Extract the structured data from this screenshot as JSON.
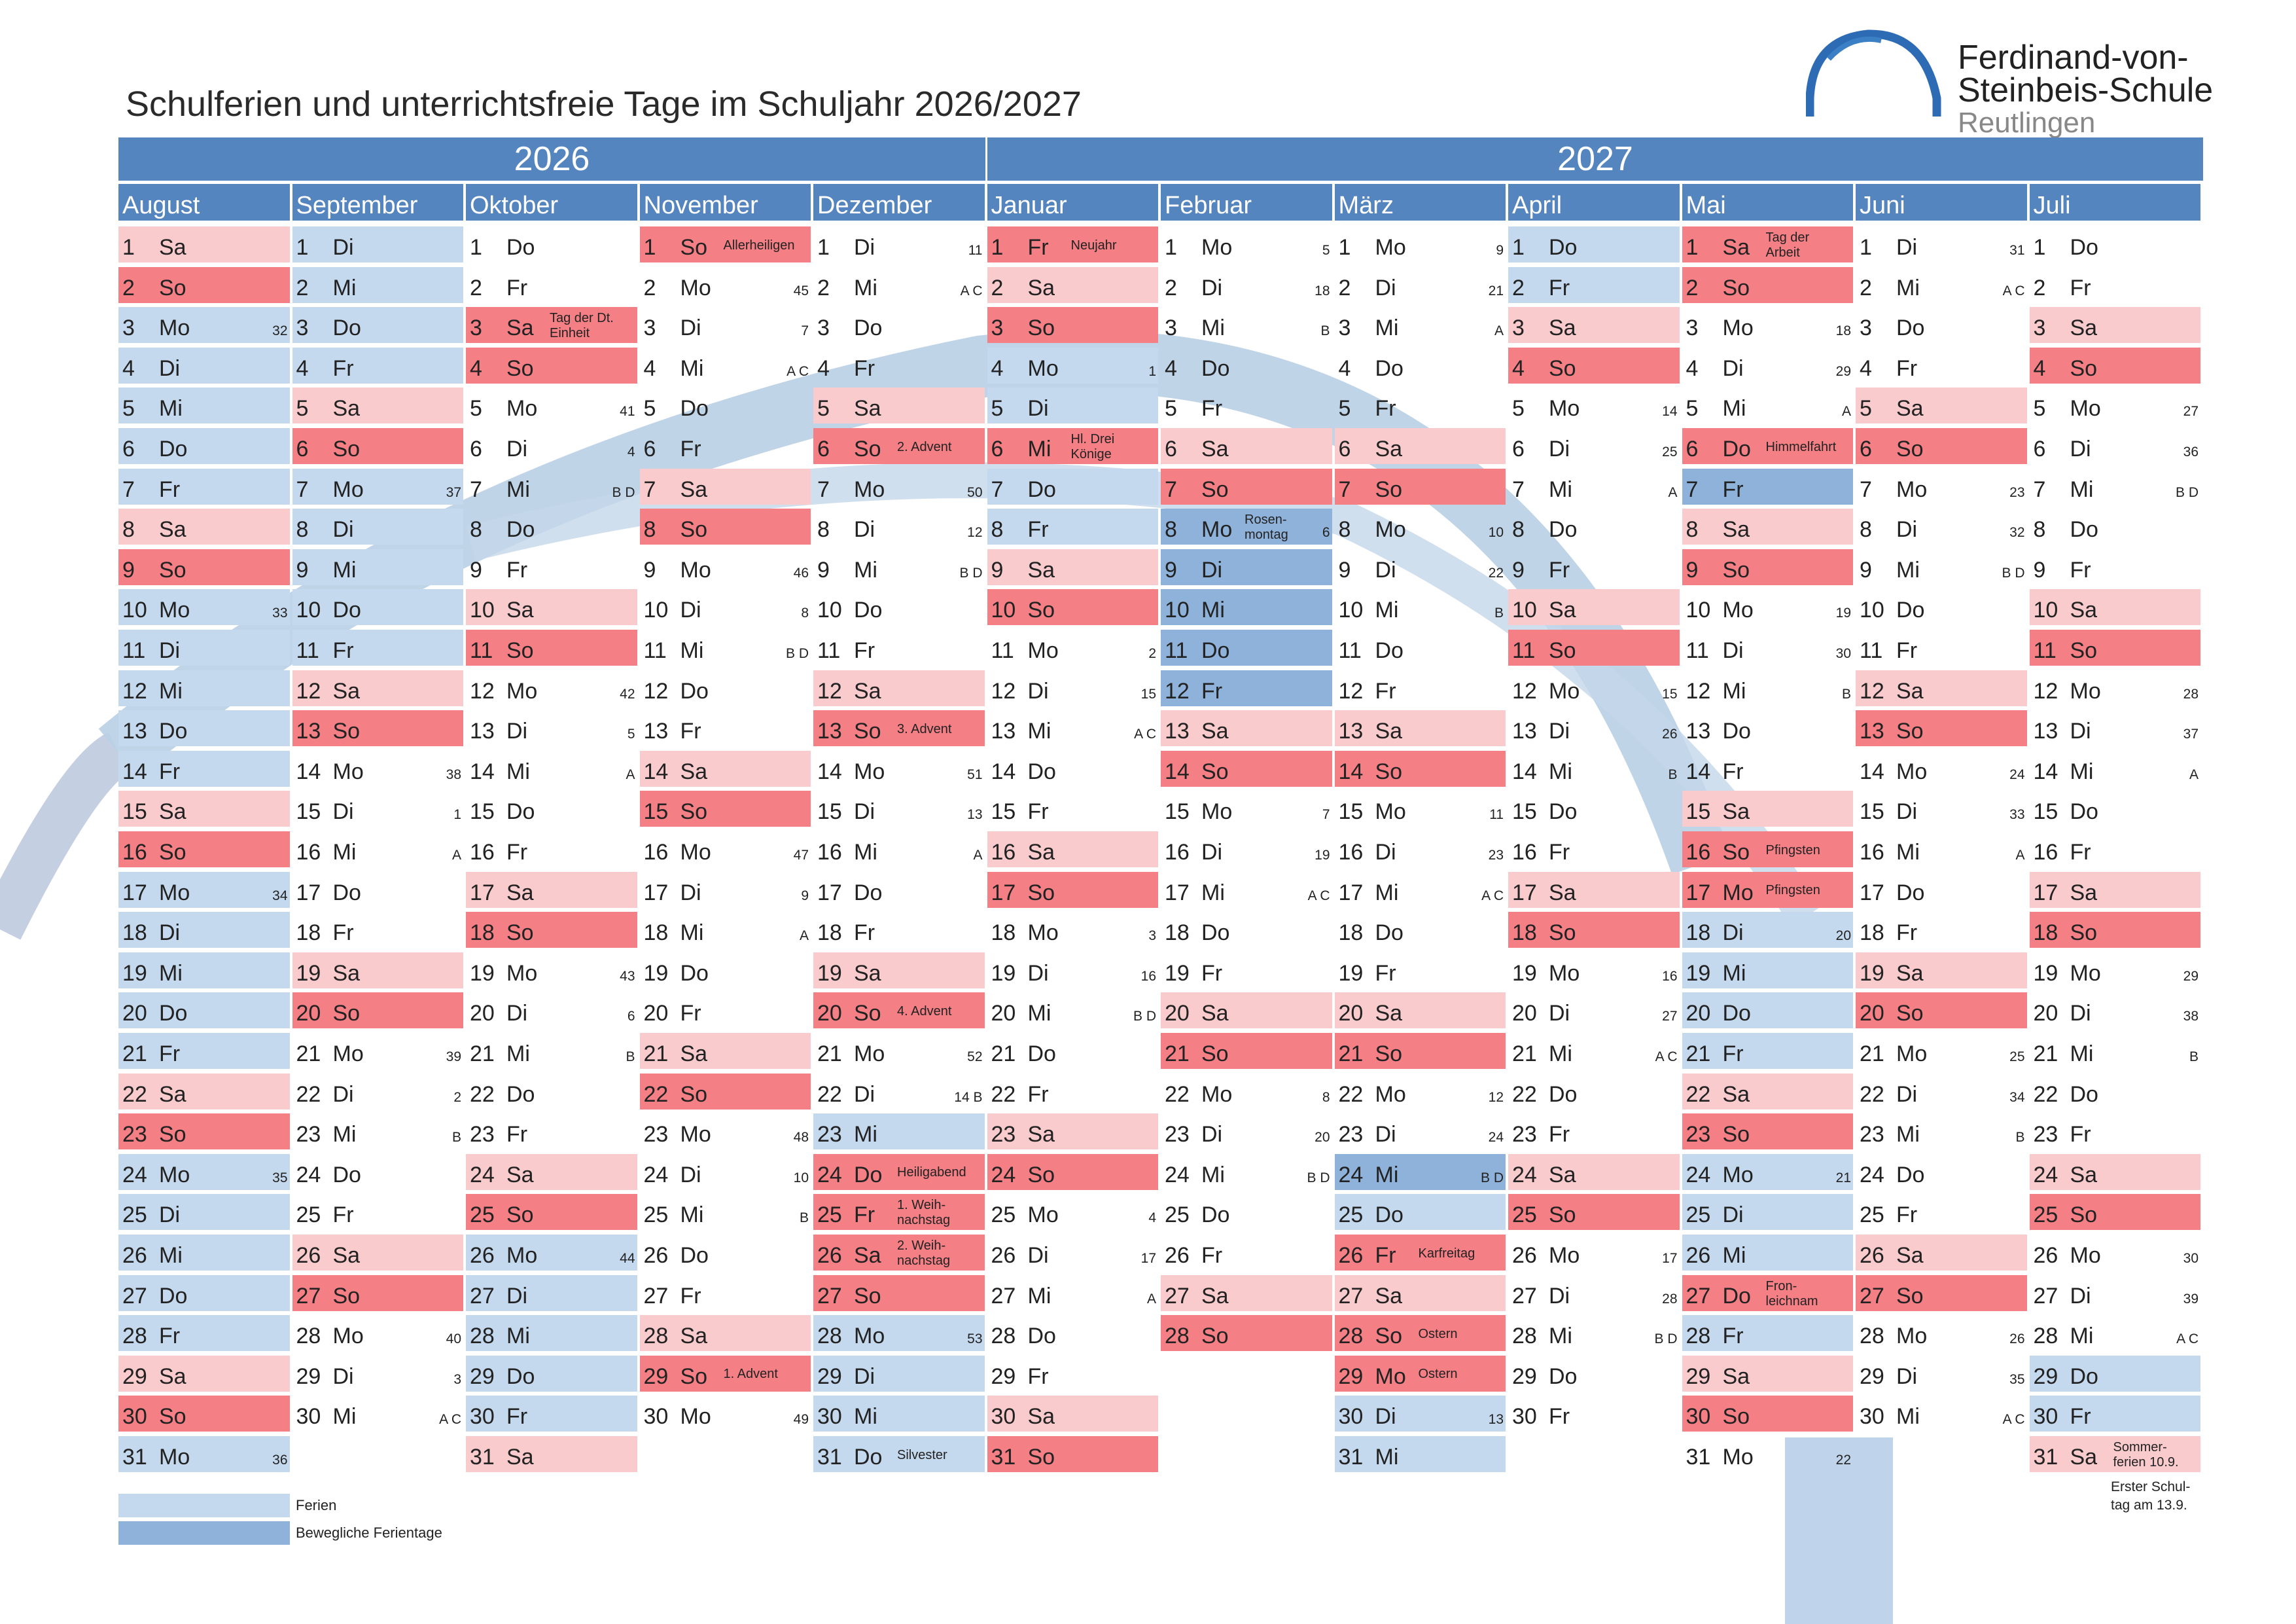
{
  "title": "Schulferien und unterrichtsfreie Tage im Schuljahr 2026/2027",
  "logo": {
    "line1": "Ferdinand-von-",
    "line2": "Steinbeis-Schule",
    "line3": "Reutlingen"
  },
  "years": [
    "2026",
    "2027"
  ],
  "weekday_abbr": [
    "Mo",
    "Di",
    "Mi",
    "Do",
    "Fr",
    "Sa",
    "So"
  ],
  "day_numbers": [
    1,
    2,
    3,
    4,
    5,
    6,
    7,
    8,
    9,
    10,
    11,
    12,
    13,
    14,
    15,
    16,
    17,
    18,
    19,
    20,
    21,
    22,
    23,
    24,
    25,
    26,
    27,
    28,
    29,
    30,
    31
  ],
  "colors": {
    "header": "#5585be",
    "saturday": "#f9cbcd",
    "sunday_holiday": "#f47f85",
    "ferien": "#c5d9ee",
    "bewegliche": "#8fb2da"
  },
  "months": [
    {
      "name": "August",
      "year": "2026",
      "days": 31,
      "start": 5,
      "status": {
        "3": "F",
        "4": "F",
        "5": "F",
        "6": "F",
        "7": "F",
        "10": "F",
        "11": "F",
        "12": "F",
        "13": "F",
        "14": "F",
        "17": "F",
        "18": "F",
        "19": "F",
        "20": "F",
        "21": "F",
        "24": "F",
        "25": "F",
        "26": "F",
        "27": "F",
        "28": "F",
        "31": "F"
      },
      "marks": {
        "3": "32",
        "10": "33",
        "17": "34",
        "24": "35",
        "31": "36"
      },
      "notes": {}
    },
    {
      "name": "September",
      "year": "2026",
      "days": 30,
      "start": 1,
      "status": {
        "1": "F",
        "2": "F",
        "3": "F",
        "4": "F",
        "7": "F",
        "8": "F",
        "9": "F",
        "10": "F",
        "11": "F"
      },
      "marks": {
        "7": "37",
        "14": "38",
        "15": "1",
        "16": "A",
        "21": "39",
        "22": "2",
        "23": "B",
        "28": "40",
        "29": "3",
        "30": "A C"
      },
      "notes": {}
    },
    {
      "name": "Oktober",
      "year": "2026",
      "days": 31,
      "start": 3,
      "status": {
        "3": "H",
        "26": "F",
        "27": "F",
        "28": "F",
        "29": "F",
        "30": "F"
      },
      "marks": {
        "5": "41",
        "6": "4",
        "7": "B D",
        "12": "42",
        "13": "5",
        "14": "A",
        "19": "43",
        "20": "6",
        "21": "B",
        "26": "44"
      },
      "notes": {
        "3": "Tag der Dt.\nEinheit"
      }
    },
    {
      "name": "November",
      "year": "2026",
      "days": 30,
      "start": 6,
      "status": {
        "1": "H"
      },
      "marks": {
        "2": "45",
        "3": "7",
        "4": "A C",
        "9": "46",
        "10": "8",
        "11": "B D",
        "16": "47",
        "17": "9",
        "18": "A",
        "23": "48",
        "24": "10",
        "25": "B",
        "30": "49"
      },
      "notes": {
        "1": "Allerheiligen",
        "29": "1. Advent"
      }
    },
    {
      "name": "Dezember",
      "year": "2026",
      "days": 31,
      "start": 1,
      "status": {
        "23": "F",
        "24": "H",
        "25": "H",
        "26": "H",
        "27": "H",
        "28": "F",
        "29": "F",
        "30": "F",
        "31": "F"
      },
      "marks": {
        "1": "11",
        "2": "A C",
        "7": "50",
        "8": "12",
        "9": "B D",
        "14": "51",
        "15": "13",
        "16": "A",
        "21": "52",
        "22": "14 B",
        "28": "53"
      },
      "notes": {
        "6": "2. Advent",
        "13": "3. Advent",
        "20": "4. Advent",
        "24": "Heiligabend",
        "25": "1. Weih-\nnachstag",
        "26": "2. Weih-\nnachstag",
        "31": "Silvester"
      }
    },
    {
      "name": "Januar",
      "year": "2027",
      "days": 31,
      "start": 4,
      "status": {
        "1": "H",
        "4": "F",
        "5": "F",
        "6": "H",
        "7": "F",
        "8": "F"
      },
      "marks": {
        "4": "1",
        "11": "2",
        "12": "15",
        "13": "A C",
        "18": "3",
        "19": "16",
        "20": "B D",
        "25": "4",
        "26": "17",
        "27": "A"
      },
      "notes": {
        "1": "Neujahr",
        "6": "Hl. Drei\nKönige"
      }
    },
    {
      "name": "Februar",
      "year": "2027",
      "days": 28,
      "start": 0,
      "status": {
        "8": "B",
        "9": "B",
        "10": "B",
        "11": "B",
        "12": "B"
      },
      "marks": {
        "1": "5",
        "2": "18",
        "3": "B",
        "8": "6",
        "15": "7",
        "16": "19",
        "17": "A C",
        "22": "8",
        "23": "20",
        "24": "B D"
      },
      "notes": {
        "8": "Rosen-\nmontag"
      }
    },
    {
      "name": "März",
      "year": "2027",
      "days": 31,
      "start": 0,
      "status": {
        "24": "B",
        "25": "F",
        "26": "H",
        "28": "H",
        "29": "H",
        "30": "F",
        "31": "F"
      },
      "marks": {
        "1": "9",
        "2": "21",
        "3": "A",
        "8": "10",
        "9": "22",
        "10": "B",
        "15": "11",
        "16": "23",
        "17": "A C",
        "22": "12",
        "23": "24",
        "24": "B D",
        "30": "13"
      },
      "notes": {
        "26": "Karfreitag",
        "28": "Ostern",
        "29": "Ostern"
      }
    },
    {
      "name": "April",
      "year": "2027",
      "days": 30,
      "start": 3,
      "status": {
        "1": "F",
        "2": "F"
      },
      "marks": {
        "5": "14",
        "6": "25",
        "7": "A",
        "12": "15",
        "13": "26",
        "14": "B",
        "19": "16",
        "20": "27",
        "21": "A C",
        "26": "17",
        "27": "28",
        "28": "B D"
      },
      "notes": {}
    },
    {
      "name": "Mai",
      "year": "2027",
      "days": 31,
      "start": 5,
      "status": {
        "1": "H",
        "6": "H",
        "7": "B",
        "16": "H",
        "17": "H",
        "18": "F",
        "19": "F",
        "20": "F",
        "21": "F",
        "24": "F",
        "25": "F",
        "26": "F",
        "27": "H",
        "28": "F"
      },
      "marks": {
        "3": "18",
        "4": "29",
        "5": "A",
        "10": "19",
        "11": "30",
        "12": "B",
        "18": "20",
        "24": "21",
        "31": "22"
      },
      "notes": {
        "1": "Tag der\nArbeit",
        "6": "Himmelfahrt",
        "16": "Pfingsten",
        "17": "Pfingsten",
        "27": "Fron-\nleichnam"
      }
    },
    {
      "name": "Juni",
      "year": "2027",
      "days": 30,
      "start": 1,
      "status": {},
      "marks": {
        "1": "31",
        "2": "A C",
        "7": "23",
        "8": "32",
        "9": "B D",
        "14": "24",
        "15": "33",
        "16": "A",
        "21": "25",
        "22": "34",
        "23": "B",
        "28": "26",
        "29": "35",
        "30": "A C"
      },
      "notes": {}
    },
    {
      "name": "Juli",
      "year": "2027",
      "days": 31,
      "start": 3,
      "status": {
        "29": "F",
        "30": "F"
      },
      "marks": {
        "5": "27",
        "6": "36",
        "7": "B D",
        "12": "28",
        "13": "37",
        "14": "A",
        "19": "29",
        "20": "38",
        "21": "B",
        "26": "30",
        "27": "39",
        "28": "A C"
      },
      "notes": {
        "31": "Sommer-\nferien 10.9."
      }
    }
  ],
  "footnote": "Erster Schul-\ntag am 13.9.",
  "legend": {
    "ferien": "Ferien",
    "bewegliche": "Bewegliche Ferientage"
  }
}
